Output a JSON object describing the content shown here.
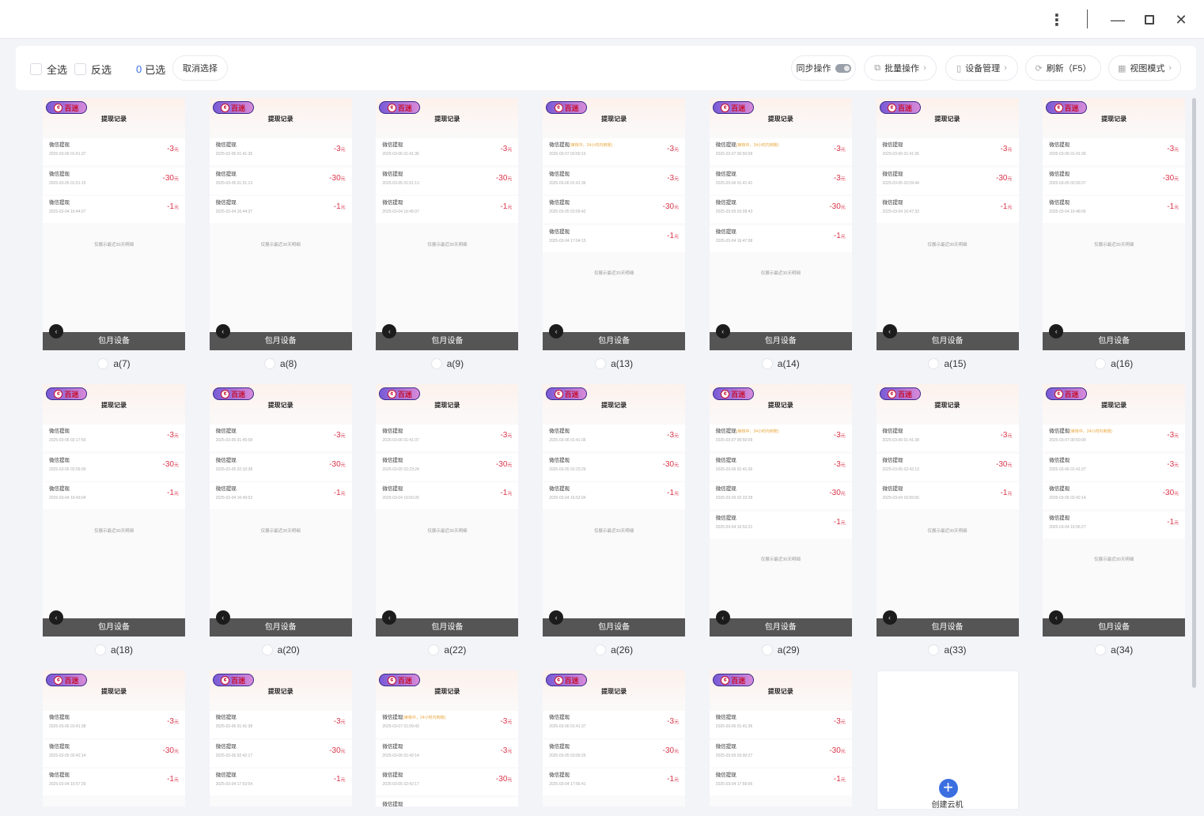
{
  "window": {
    "menu_icon": "kebab-icon",
    "minimize_icon": "minimize-icon",
    "maximize_icon": "maximize-icon",
    "close_icon": "close-icon"
  },
  "toolbar": {
    "select_all": "全选",
    "invert": "反选",
    "selected_count": "0",
    "selected_label": "已选",
    "clear_selection": "取消选择",
    "sync": "同步操作",
    "sync_on": false,
    "batch": "批量操作",
    "devices": "设备管理",
    "refresh": "刷新（F5）",
    "view_mode": "视图模式",
    "accent": "#3b6fe0"
  },
  "screen": {
    "logo": "百迷",
    "title": "提现记录",
    "record_title": "微信提现",
    "unit": "元",
    "footer": "仅展示最近30天明细",
    "plan_label": "包月设备"
  },
  "add_card": {
    "label": "创建云机"
  },
  "cards": [
    {
      "name": "a(7)",
      "records": [
        [
          "",
          "2025-03-06 01:41:37",
          "-3"
        ],
        [
          "",
          "2025-03-05 01:51:15",
          "-30"
        ],
        [
          "",
          "2025-03-04 16:44:27",
          "-1"
        ]
      ]
    },
    {
      "name": "a(8)",
      "records": [
        [
          "",
          "2025-03-06 01:41:36",
          "-3"
        ],
        [
          "",
          "2025-03-05 01:51:13",
          "-30"
        ],
        [
          "",
          "2025-03-04 16:44:37",
          "-1"
        ]
      ]
    },
    {
      "name": "a(9)",
      "records": [
        [
          "",
          "2025-03-06 01:41:36",
          "-3"
        ],
        [
          "",
          "2025-03-05 01:51:13",
          "-30"
        ],
        [
          "",
          "2025-03-04 16:45:07",
          "-1"
        ]
      ]
    },
    {
      "name": "a(13)",
      "records": [
        [
          "(审核中，24小时内到账)",
          "2025-03-07 00:50:10",
          "-3"
        ],
        [
          "",
          "2025-03-06 01:41:36",
          "-3"
        ],
        [
          "",
          "2025-03-05 02:09:42",
          "-30"
        ],
        [
          "",
          "2025-03-04 17:04:15",
          "-1"
        ]
      ]
    },
    {
      "name": "a(14)",
      "records": [
        [
          "(审核中，24小时内到账)",
          "2025-03-07 00:50:09",
          "-3"
        ],
        [
          "",
          "2025-03-06 01:41:41",
          "-3"
        ],
        [
          "",
          "2025-03-05 02:09:43",
          "-30"
        ],
        [
          "",
          "2025-03-04 16:47:08",
          "-1"
        ]
      ]
    },
    {
      "name": "a(15)",
      "records": [
        [
          "",
          "2025-03-06 01:41:36",
          "-3"
        ],
        [
          "",
          "2025-03-05 02:09:44",
          "-30"
        ],
        [
          "",
          "2025-03-04 16:47:33",
          "-1"
        ]
      ]
    },
    {
      "name": "a(16)",
      "records": [
        [
          "",
          "2025-03-06 01:41:36",
          "-3"
        ],
        [
          "",
          "2025-03-05 02:09:37",
          "-30"
        ],
        [
          "",
          "2025-03-04 16:48:06",
          "-1"
        ]
      ]
    },
    {
      "name": "a(18)",
      "records": [
        [
          "",
          "2025-03-06 02:17:50",
          "-3"
        ],
        [
          "",
          "2025-03-05 02:09:39",
          "-30"
        ],
        [
          "",
          "2025-03-04 16:49:04",
          "-1"
        ]
      ]
    },
    {
      "name": "a(20)",
      "records": [
        [
          "",
          "2025-03-06 01:45:58",
          "-3"
        ],
        [
          "",
          "2025-03-05 02:10:38",
          "-30"
        ],
        [
          "",
          "2025-03-04 16:49:53",
          "-1"
        ]
      ]
    },
    {
      "name": "a(22)",
      "records": [
        [
          "",
          "2025-03-06 01:41:37",
          "-3"
        ],
        [
          "",
          "2025-03-05 02:23:24",
          "-30"
        ],
        [
          "",
          "2025-03-04 16:50:26",
          "-1"
        ]
      ]
    },
    {
      "name": "a(26)",
      "records": [
        [
          "",
          "2025-03-06 01:41:36",
          "-3"
        ],
        [
          "",
          "2025-03-05 02:23:29",
          "-30"
        ],
        [
          "",
          "2025-03-04 16:52:04",
          "-1"
        ]
      ]
    },
    {
      "name": "a(29)",
      "records": [
        [
          "(审核中，24小时内到账)",
          "2025-03-07 00:50:09",
          "-3"
        ],
        [
          "",
          "2025-03-06 01:41:36",
          "-3"
        ],
        [
          "",
          "2025-03-05 02:23:28",
          "-30"
        ],
        [
          "",
          "2025-03-04 16:53:21",
          "-1"
        ]
      ]
    },
    {
      "name": "a(33)",
      "records": [
        [
          "",
          "2025-03-06 01:41:38",
          "-3"
        ],
        [
          "",
          "2025-03-05 02:42:13",
          "-30"
        ],
        [
          "",
          "2025-03-04 16:55:56",
          "-1"
        ]
      ]
    },
    {
      "name": "a(34)",
      "records": [
        [
          "(审核中，24小时内到账)",
          "2025-03-07 00:50:09",
          "-3"
        ],
        [
          "",
          "2025-03-06 01:41:37",
          "-3"
        ],
        [
          "",
          "2025-03-05 02:42:14",
          "-30"
        ],
        [
          "",
          "2025-03-04 16:56:27",
          "-1"
        ]
      ]
    },
    {
      "name": "",
      "records": [
        [
          "",
          "2025-03-06 01:41:38",
          "-3"
        ],
        [
          "",
          "2025-03-05 02:42:14",
          "-30"
        ],
        [
          "",
          "2025-03-04 16:57:29",
          "-1"
        ]
      ]
    },
    {
      "name": "",
      "records": [
        [
          "",
          "2025-03-06 01:41:38",
          "-3"
        ],
        [
          "",
          "2025-03-05 02:42:17",
          "-30"
        ],
        [
          "",
          "2025-03-04 17:53:54",
          "-1"
        ]
      ]
    },
    {
      "name": "",
      "records": [
        [
          "(审核中，24小时内到账)",
          "2025-03-07 01:09:43",
          "-3"
        ],
        [
          "",
          "2025-03-06 01:42:14",
          "-3"
        ],
        [
          "",
          "2025-03-05 02:42:17",
          "-30"
        ],
        [
          "",
          "",
          "-"
        ]
      ]
    },
    {
      "name": "",
      "records": [
        [
          "",
          "2025-03-06 01:41:37",
          "-3"
        ],
        [
          "",
          "2025-03-05 03:00:25",
          "-30"
        ],
        [
          "",
          "2025-03-04 17:56:41",
          "-1"
        ]
      ]
    },
    {
      "name": "",
      "records": [
        [
          "",
          "2025-03-06 01:41:36",
          "-3"
        ],
        [
          "",
          "2025-03-05 03:00:27",
          "-30"
        ],
        [
          "",
          "2025-03-04 17:59:06",
          "-1"
        ]
      ]
    }
  ]
}
